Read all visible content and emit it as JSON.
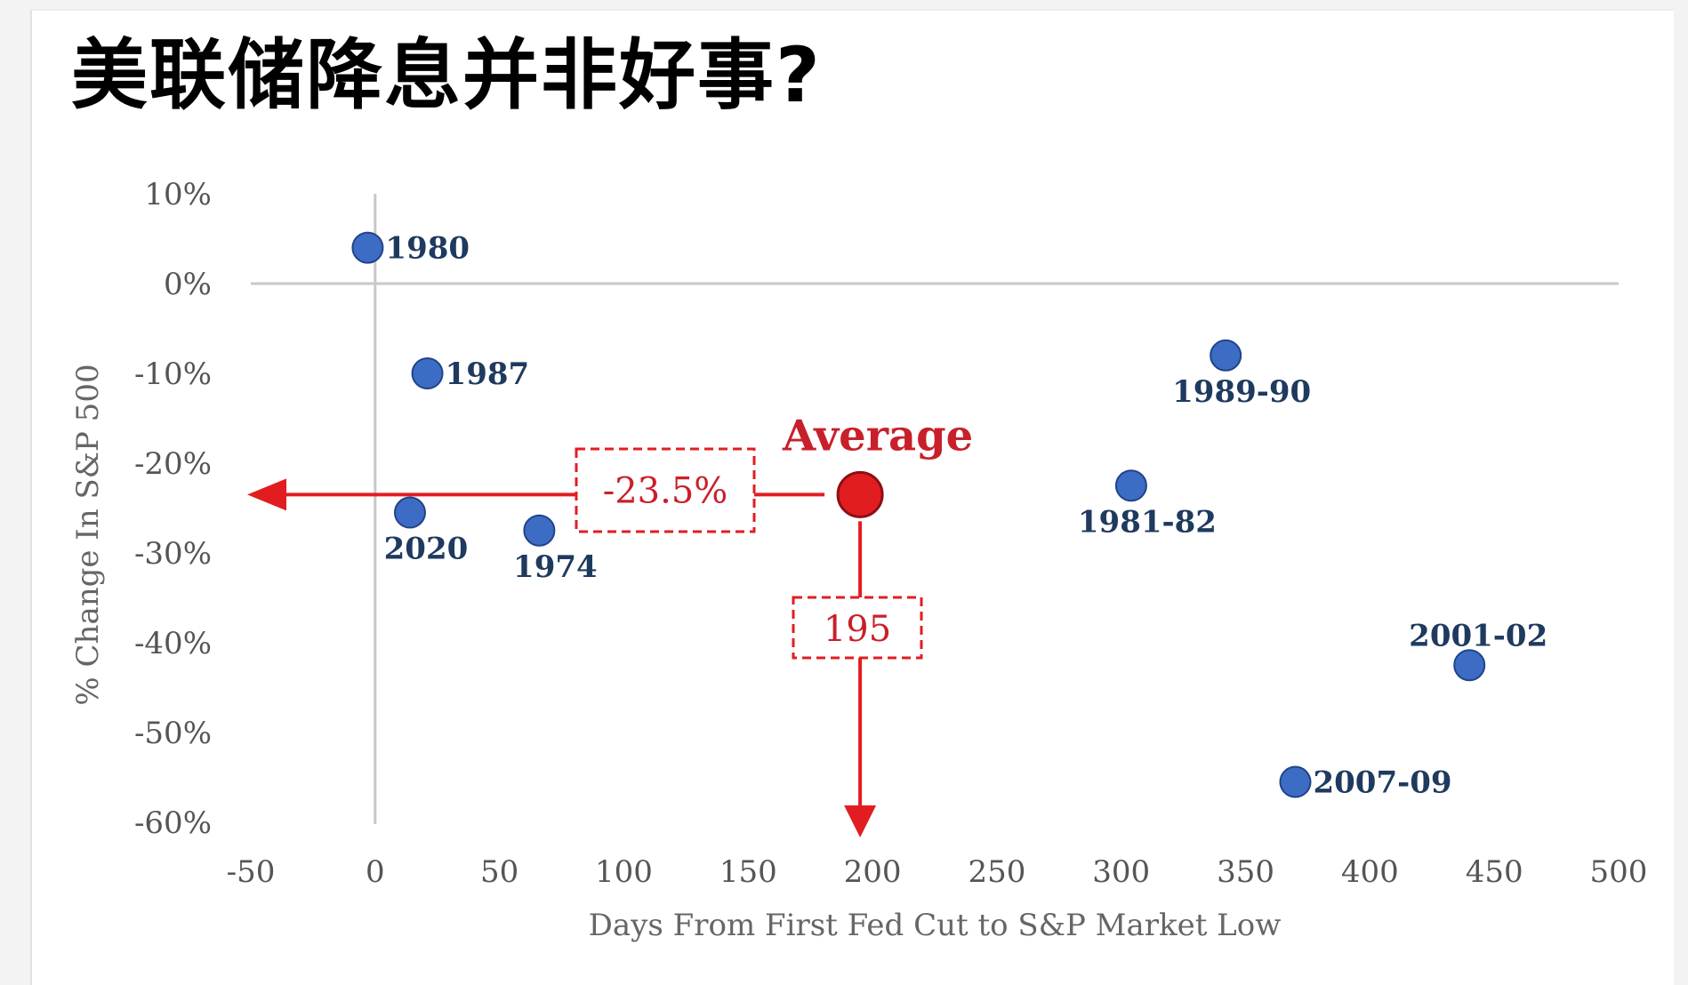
{
  "headline": "美联储降息并非好事?",
  "colors": {
    "point_fill": "#3d6cc4",
    "point_stroke": "#20438a",
    "label": "#1f3a5f",
    "highlight": "#e11d22",
    "highlight_dark": "#c8202a",
    "axis": "#c8c8c8",
    "tick": "#555555"
  },
  "chart_data": {
    "type": "scatter",
    "title": "",
    "xlabel": "Days From First Fed Cut to S&P Market Low",
    "ylabel": "% Change In S&P 500",
    "xlim": [
      -50,
      500
    ],
    "ylim": [
      -60,
      10
    ],
    "x_ticks": [
      -50,
      0,
      50,
      100,
      150,
      200,
      250,
      300,
      350,
      400,
      450,
      500
    ],
    "y_ticks": [
      10,
      0,
      -10,
      -20,
      -30,
      -40,
      -50,
      -60
    ],
    "y_tick_labels": [
      "10%",
      "0%",
      "-10%",
      "-20%",
      "-30%",
      "-40%",
      "-50%",
      "-60%"
    ],
    "grid": false,
    "points": [
      {
        "label": "1980",
        "x": -3,
        "y": 4,
        "label_pos": "right"
      },
      {
        "label": "1987",
        "x": 21,
        "y": -10,
        "label_pos": "right"
      },
      {
        "label": "2020",
        "x": 14,
        "y": -25.5,
        "label_pos": "below"
      },
      {
        "label": "1974",
        "x": 66,
        "y": -27.5,
        "label_pos": "below"
      },
      {
        "label": "1981-82",
        "x": 304,
        "y": -22.5,
        "label_pos": "below"
      },
      {
        "label": "1989-90",
        "x": 342,
        "y": -8,
        "label_pos": "below"
      },
      {
        "label": "2001-02",
        "x": 440,
        "y": -42.5,
        "label_pos": "above"
      },
      {
        "label": "2007-09",
        "x": 370,
        "y": -55.5,
        "label_pos": "right"
      }
    ],
    "average": {
      "label": "Average",
      "x": 195,
      "y": -23.5,
      "x_label": "195",
      "y_label": "-23.5%"
    }
  }
}
